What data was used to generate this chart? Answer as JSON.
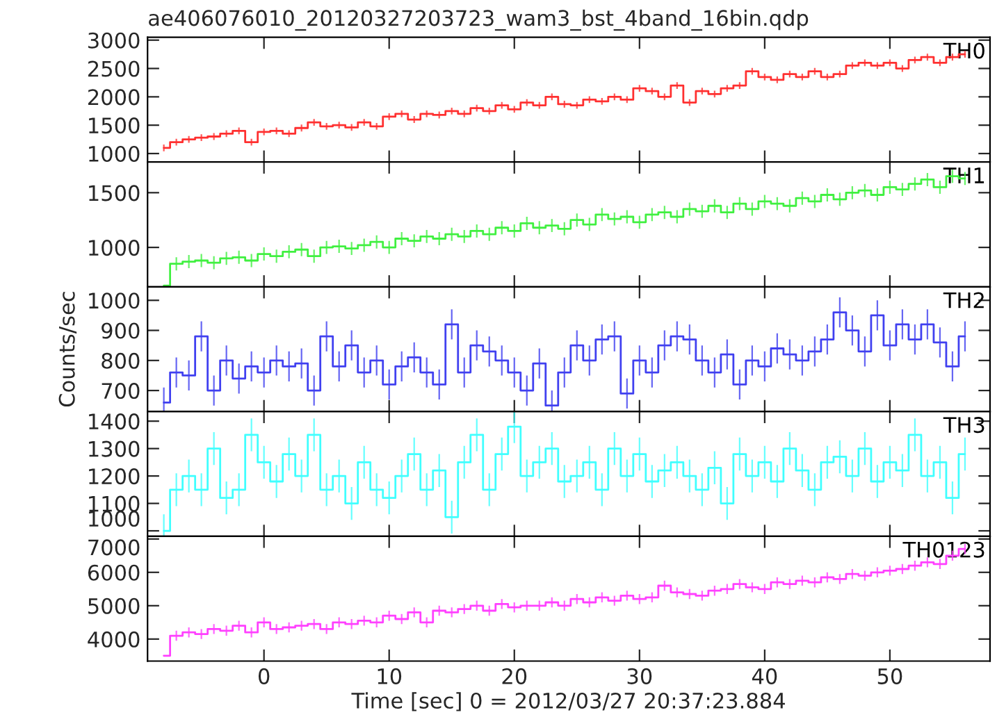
{
  "chart_data": [
    {
      "type": "step",
      "title": "ae406076010_20120327203723_wam3_bst_4band_16bin.qdp",
      "xlim": [
        -9.3,
        58
      ],
      "xticks": [
        0,
        10,
        20,
        30,
        40,
        50
      ],
      "ylim": [
        850,
        3050
      ],
      "yticks": [
        1000,
        1500,
        2000,
        2500,
        3000
      ],
      "tick_labels": "y",
      "grid": false,
      "series": [
        {
          "name": "TH0",
          "color": "#ff3030",
          "x": [
            -8,
            -7,
            -6,
            -5,
            -4,
            -3,
            -2,
            -1,
            0,
            1,
            2,
            3,
            4,
            5,
            6,
            7,
            8,
            9,
            10,
            11,
            12,
            13,
            14,
            15,
            16,
            17,
            18,
            19,
            20,
            21,
            22,
            23,
            24,
            25,
            26,
            27,
            28,
            29,
            30,
            31,
            32,
            33,
            34,
            35,
            36,
            37,
            38,
            39,
            40,
            41,
            42,
            43,
            44,
            45,
            46,
            47,
            48,
            49,
            50,
            51,
            52,
            53,
            54,
            55,
            56
          ],
          "values": [
            1100,
            1200,
            1250,
            1280,
            1300,
            1350,
            1400,
            1200,
            1380,
            1400,
            1350,
            1450,
            1550,
            1480,
            1500,
            1460,
            1550,
            1480,
            1650,
            1700,
            1600,
            1700,
            1680,
            1750,
            1700,
            1800,
            1750,
            1850,
            1780,
            1900,
            1850,
            2000,
            1870,
            1850,
            1950,
            1920,
            2000,
            1950,
            2150,
            2100,
            2000,
            2200,
            1900,
            2100,
            2050,
            2150,
            2200,
            2450,
            2350,
            2300,
            2400,
            2350,
            2450,
            2350,
            2400,
            2550,
            2600,
            2550,
            2600,
            2500,
            2650,
            2700,
            2600,
            2700,
            2750
          ],
          "errors": [
            60,
            60,
            60,
            60,
            60,
            60,
            60,
            60,
            60,
            60,
            60,
            60,
            60,
            60,
            60,
            60,
            60,
            60,
            60,
            60,
            60,
            60,
            60,
            60,
            60,
            60,
            60,
            60,
            60,
            60,
            60,
            60,
            60,
            60,
            60,
            60,
            60,
            60,
            60,
            60,
            60,
            60,
            60,
            60,
            60,
            60,
            60,
            60,
            60,
            60,
            60,
            60,
            60,
            60,
            60,
            60,
            60,
            60,
            60,
            60,
            60,
            60,
            60,
            60,
            60
          ]
        }
      ]
    },
    {
      "type": "step",
      "xlim": [
        -9.3,
        58
      ],
      "xticks": [
        0,
        10,
        20,
        30,
        40,
        50
      ],
      "ylim": [
        640,
        1780
      ],
      "yticks": [
        1000,
        1500
      ],
      "tick_labels": "y",
      "grid": false,
      "series": [
        {
          "name": "TH1",
          "color": "#40f040",
          "x": [
            -8,
            -7,
            -6,
            -5,
            -4,
            -3,
            -2,
            -1,
            0,
            1,
            2,
            3,
            4,
            5,
            6,
            7,
            8,
            9,
            10,
            11,
            12,
            13,
            14,
            15,
            16,
            17,
            18,
            19,
            20,
            21,
            22,
            23,
            24,
            25,
            26,
            27,
            28,
            29,
            30,
            31,
            32,
            33,
            34,
            35,
            36,
            37,
            38,
            39,
            40,
            41,
            42,
            43,
            44,
            45,
            46,
            47,
            48,
            49,
            50,
            51,
            52,
            53,
            54,
            55,
            56
          ],
          "values": [
            650,
            850,
            870,
            880,
            860,
            900,
            910,
            880,
            940,
            920,
            960,
            980,
            920,
            1000,
            1010,
            990,
            1020,
            1050,
            1000,
            1080,
            1060,
            1100,
            1080,
            1120,
            1100,
            1150,
            1120,
            1180,
            1150,
            1220,
            1180,
            1200,
            1170,
            1250,
            1210,
            1300,
            1260,
            1280,
            1230,
            1300,
            1320,
            1280,
            1350,
            1330,
            1380,
            1320,
            1400,
            1350,
            1420,
            1400,
            1380,
            1450,
            1420,
            1480,
            1440,
            1500,
            1520,
            1480,
            1550,
            1530,
            1580,
            1620,
            1550,
            1650,
            1630
          ],
          "errors": [
            null,
            60,
            60,
            60,
            60,
            60,
            60,
            60,
            60,
            60,
            60,
            60,
            60,
            60,
            60,
            60,
            60,
            60,
            60,
            60,
            60,
            60,
            60,
            60,
            60,
            60,
            60,
            60,
            60,
            60,
            60,
            60,
            60,
            60,
            60,
            60,
            60,
            60,
            60,
            60,
            60,
            60,
            60,
            60,
            60,
            60,
            60,
            60,
            60,
            60,
            60,
            60,
            60,
            60,
            60,
            60,
            60,
            60,
            60,
            60,
            60,
            60,
            60,
            60,
            60
          ]
        }
      ]
    },
    {
      "type": "step",
      "xlim": [
        -9.3,
        58
      ],
      "xticks": [
        0,
        10,
        20,
        30,
        40,
        50
      ],
      "ylim": [
        630,
        1045
      ],
      "yticks": [
        700,
        800,
        900,
        1000
      ],
      "ylabel": "Counts/sec",
      "tick_labels": "y",
      "grid": false,
      "series": [
        {
          "name": "TH2",
          "color": "#4040f0",
          "x": [
            -8,
            -7,
            -6,
            -5,
            -4,
            -3,
            -2,
            -1,
            0,
            1,
            2,
            3,
            4,
            5,
            6,
            7,
            8,
            9,
            10,
            11,
            12,
            13,
            14,
            15,
            16,
            17,
            18,
            19,
            20,
            21,
            22,
            23,
            24,
            25,
            26,
            27,
            28,
            29,
            30,
            31,
            32,
            33,
            34,
            35,
            36,
            37,
            38,
            39,
            40,
            41,
            42,
            43,
            44,
            45,
            46,
            47,
            48,
            49,
            50,
            51,
            52,
            53,
            54,
            55,
            56
          ],
          "values": [
            660,
            760,
            750,
            880,
            700,
            800,
            740,
            780,
            760,
            800,
            780,
            790,
            700,
            880,
            780,
            850,
            760,
            800,
            720,
            780,
            810,
            760,
            720,
            920,
            760,
            850,
            830,
            800,
            760,
            700,
            790,
            650,
            760,
            850,
            800,
            870,
            880,
            690,
            800,
            760,
            850,
            880,
            870,
            800,
            760,
            820,
            720,
            800,
            780,
            840,
            820,
            800,
            830,
            870,
            960,
            900,
            830,
            950,
            850,
            920,
            870,
            920,
            860,
            780,
            880
          ],
          "errors": [
            50,
            50,
            50,
            50,
            50,
            50,
            50,
            50,
            50,
            50,
            50,
            50,
            50,
            50,
            50,
            50,
            50,
            50,
            50,
            50,
            50,
            50,
            50,
            50,
            50,
            50,
            50,
            50,
            50,
            50,
            50,
            50,
            50,
            50,
            50,
            50,
            50,
            50,
            50,
            50,
            50,
            50,
            50,
            50,
            50,
            50,
            50,
            50,
            50,
            50,
            50,
            50,
            50,
            50,
            50,
            50,
            50,
            50,
            50,
            50,
            50,
            50,
            50,
            50,
            50
          ]
        }
      ]
    },
    {
      "type": "step",
      "xlim": [
        -9.3,
        58
      ],
      "xticks": [
        0,
        10,
        20,
        30,
        40,
        50
      ],
      "ylim": [
        980,
        1435
      ],
      "yticks": [
        1000,
        1100,
        1200,
        1300,
        1400
      ],
      "tick_labels": "y",
      "grid": false,
      "series": [
        {
          "name": "TH3",
          "color": "#40ffff",
          "x": [
            -8,
            -7,
            -6,
            -5,
            -4,
            -3,
            -2,
            -1,
            0,
            1,
            2,
            3,
            4,
            5,
            6,
            7,
            8,
            9,
            10,
            11,
            12,
            13,
            14,
            15,
            16,
            17,
            18,
            19,
            20,
            21,
            22,
            23,
            24,
            25,
            26,
            27,
            28,
            29,
            30,
            31,
            32,
            33,
            34,
            35,
            36,
            37,
            38,
            39,
            40,
            41,
            42,
            43,
            44,
            45,
            46,
            47,
            48,
            49,
            50,
            51,
            52,
            53,
            54,
            55,
            56
          ],
          "values": [
            1000,
            1150,
            1200,
            1150,
            1300,
            1120,
            1150,
            1350,
            1250,
            1180,
            1280,
            1200,
            1350,
            1150,
            1200,
            1100,
            1250,
            1150,
            1120,
            1200,
            1280,
            1150,
            1220,
            1050,
            1250,
            1350,
            1150,
            1280,
            1380,
            1200,
            1250,
            1300,
            1180,
            1200,
            1250,
            1150,
            1300,
            1200,
            1280,
            1180,
            1220,
            1250,
            1200,
            1150,
            1230,
            1100,
            1280,
            1200,
            1250,
            1180,
            1300,
            1220,
            1150,
            1250,
            1270,
            1200,
            1300,
            1180,
            1250,
            1220,
            1350,
            1200,
            1250,
            1120,
            1280
          ],
          "errors": [
            60,
            60,
            60,
            60,
            60,
            60,
            60,
            60,
            60,
            60,
            60,
            60,
            60,
            60,
            60,
            60,
            60,
            60,
            60,
            60,
            60,
            60,
            60,
            60,
            60,
            60,
            60,
            60,
            60,
            60,
            60,
            60,
            60,
            60,
            60,
            60,
            60,
            60,
            60,
            60,
            60,
            60,
            60,
            60,
            60,
            60,
            60,
            60,
            60,
            60,
            60,
            60,
            60,
            60,
            60,
            60,
            60,
            60,
            60,
            60,
            60,
            60,
            60,
            60,
            60
          ]
        }
      ]
    },
    {
      "type": "step",
      "xlim": [
        -9.3,
        58
      ],
      "xticks": [
        0,
        10,
        20,
        30,
        40,
        50
      ],
      "ylim": [
        3340,
        7080
      ],
      "yticks": [
        4000,
        5000,
        6000,
        7000
      ],
      "xlabel": "Time [sec] 0 = 2012/03/27 20:37:23.884",
      "grid": false,
      "series": [
        {
          "name": "TH0123",
          "color": "#ff40ff",
          "x": [
            -8,
            -7,
            -6,
            -5,
            -4,
            -3,
            -2,
            -1,
            0,
            1,
            2,
            3,
            4,
            5,
            6,
            7,
            8,
            9,
            10,
            11,
            12,
            13,
            14,
            15,
            16,
            17,
            18,
            19,
            20,
            21,
            22,
            23,
            24,
            25,
            26,
            27,
            28,
            29,
            30,
            31,
            32,
            33,
            34,
            35,
            36,
            37,
            38,
            39,
            40,
            41,
            42,
            43,
            44,
            45,
            46,
            47,
            48,
            49,
            50,
            51,
            52,
            53,
            54,
            55,
            56
          ],
          "values": [
            3500,
            4100,
            4200,
            4150,
            4300,
            4250,
            4400,
            4200,
            4500,
            4300,
            4350,
            4400,
            4450,
            4300,
            4500,
            4450,
            4550,
            4500,
            4700,
            4600,
            4800,
            4500,
            4850,
            4800,
            4900,
            5000,
            4850,
            5050,
            4950,
            5000,
            5000,
            5100,
            5000,
            5200,
            5100,
            5250,
            5150,
            5300,
            5200,
            5250,
            5600,
            5400,
            5350,
            5300,
            5450,
            5500,
            5650,
            5550,
            5500,
            5700,
            5650,
            5750,
            5700,
            5850,
            5800,
            5950,
            5900,
            6000,
            6050,
            6100,
            6200,
            6300,
            6250,
            6500,
            6700
          ],
          "errors": [
            null,
            150,
            150,
            150,
            150,
            150,
            150,
            150,
            150,
            150,
            150,
            150,
            150,
            150,
            150,
            150,
            150,
            150,
            150,
            150,
            150,
            150,
            150,
            150,
            150,
            150,
            150,
            150,
            150,
            150,
            150,
            150,
            150,
            150,
            150,
            150,
            150,
            150,
            150,
            150,
            150,
            150,
            150,
            150,
            150,
            150,
            150,
            150,
            150,
            150,
            150,
            150,
            150,
            150,
            150,
            150,
            150,
            150,
            150,
            150,
            150,
            150,
            150,
            150,
            150
          ]
        }
      ]
    }
  ]
}
